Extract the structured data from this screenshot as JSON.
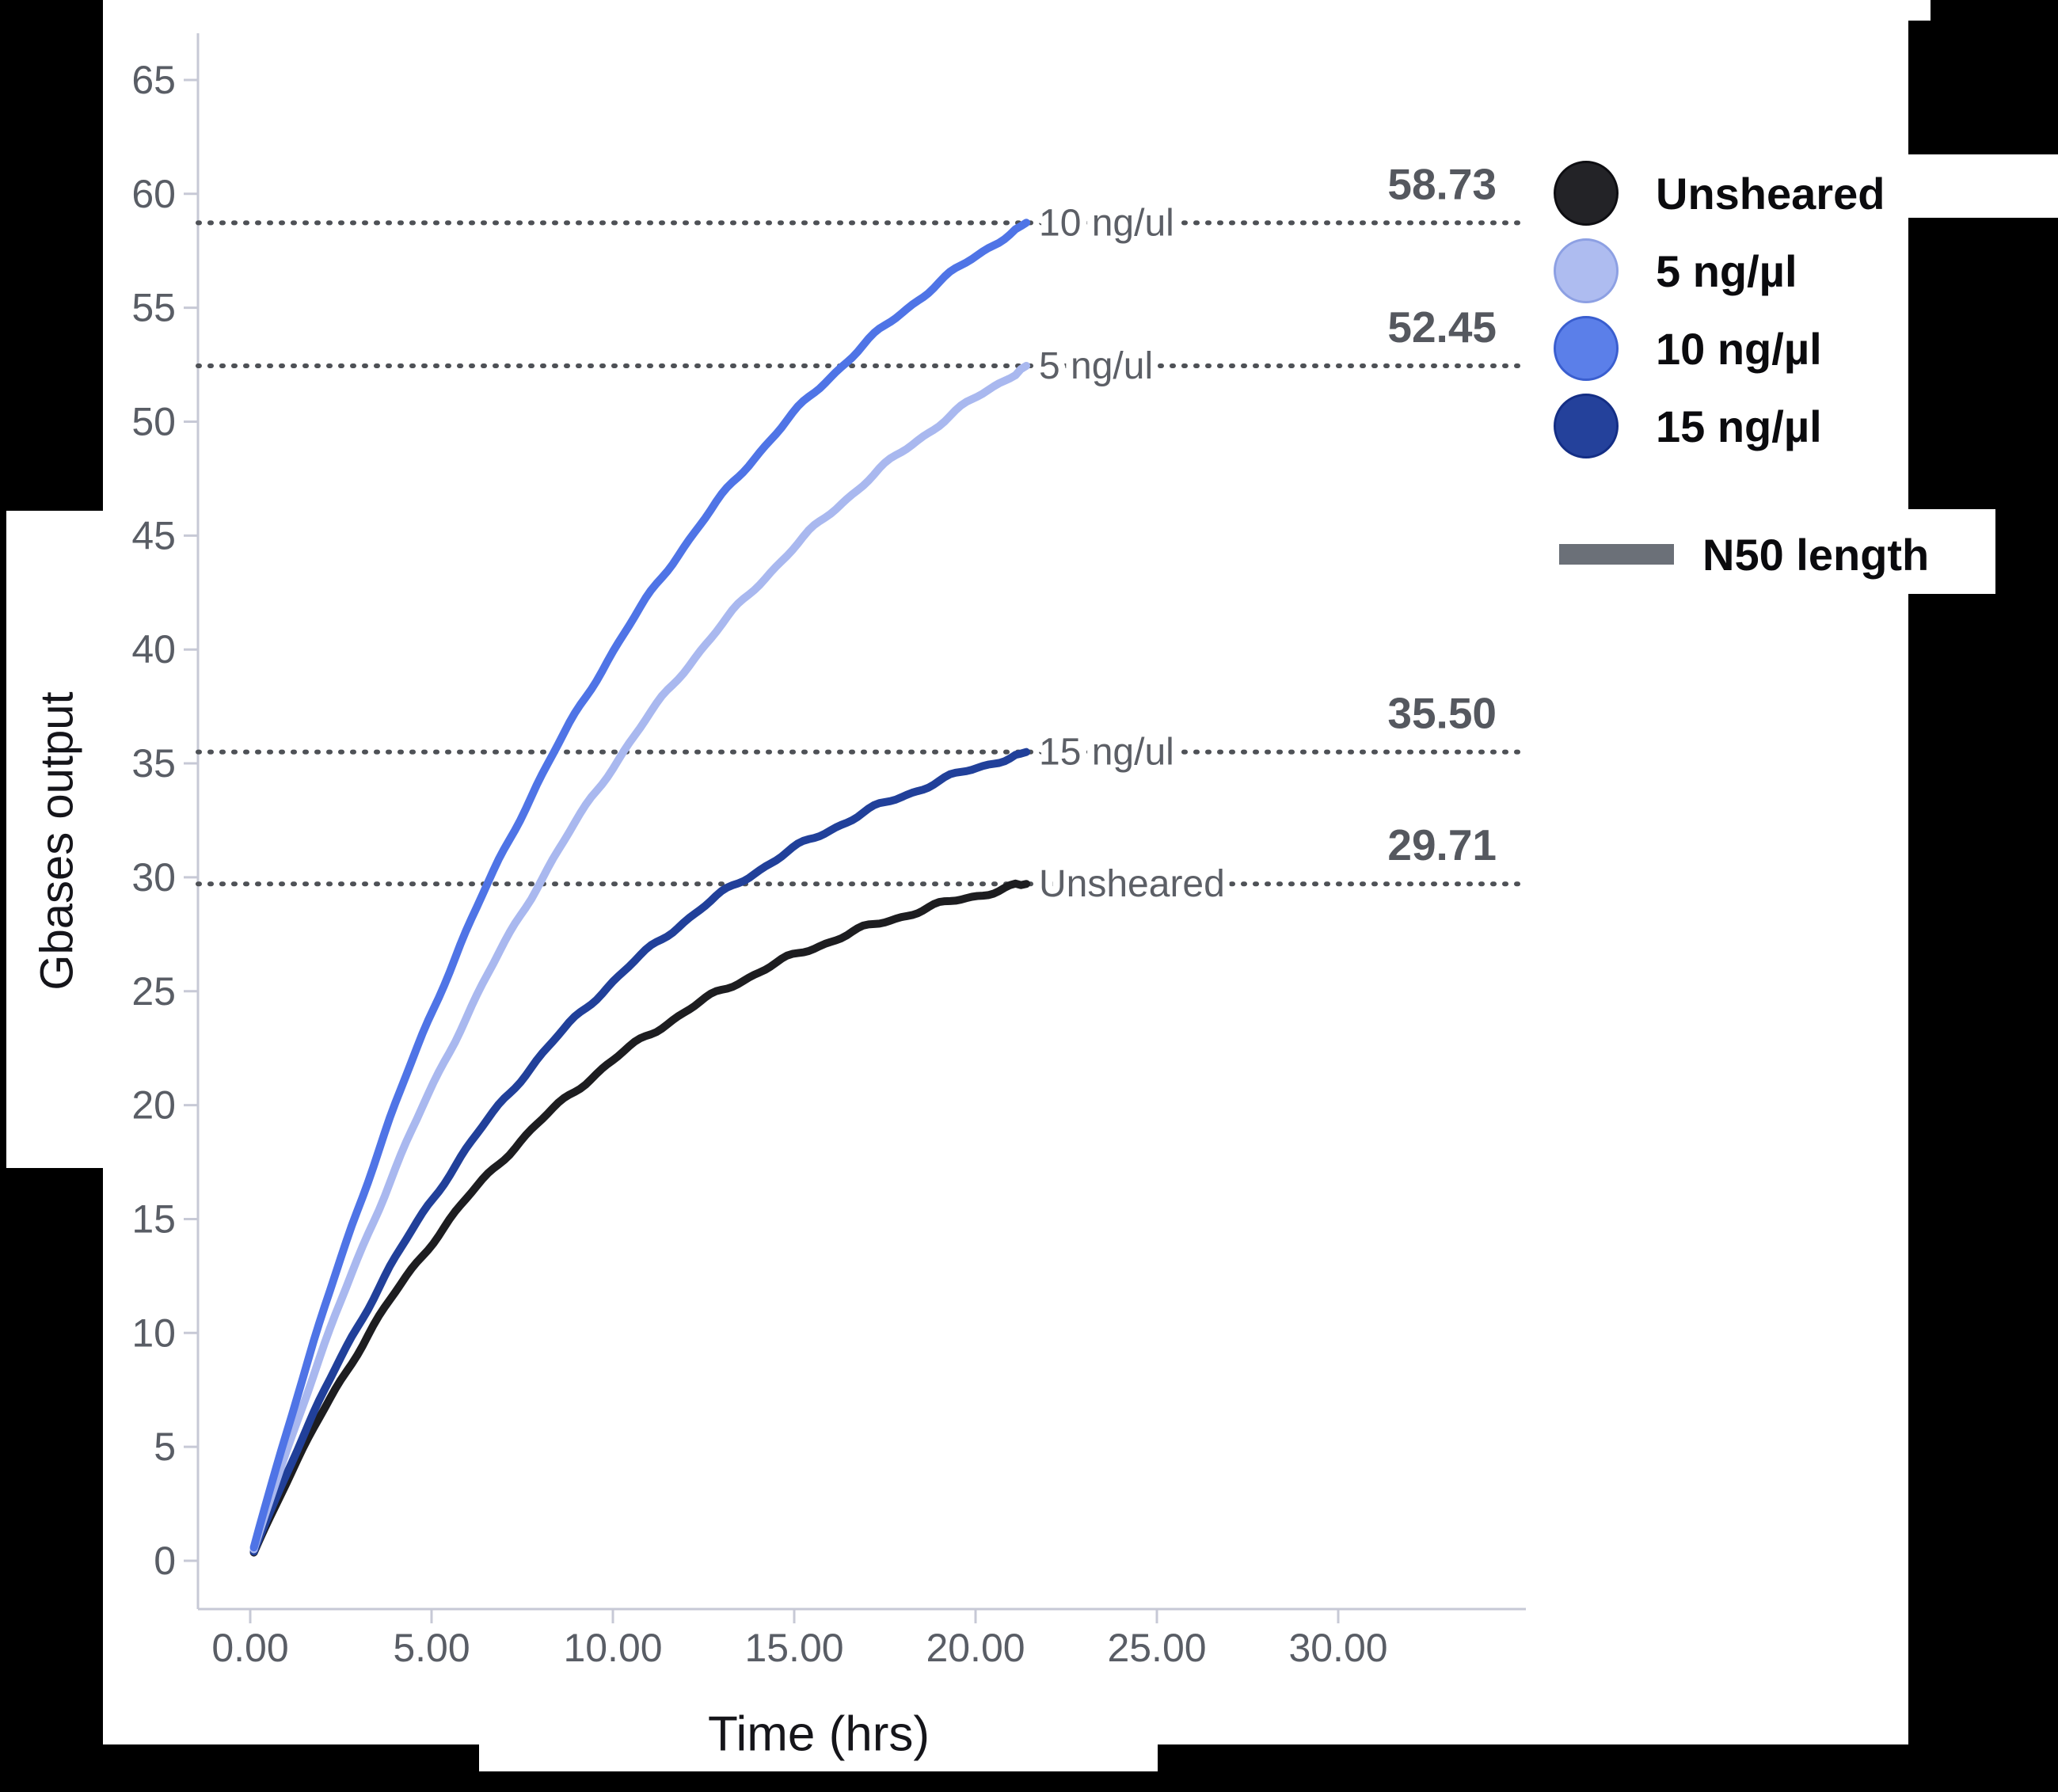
{
  "figure": {
    "background_color": "#000000",
    "plot_background_color": "#ffffff"
  },
  "chart_data": {
    "type": "line",
    "title": "",
    "xlabel": "Time (hrs)",
    "ylabel": "Gbases output",
    "xlim": [
      0,
      35
    ],
    "ylim": [
      0,
      67
    ],
    "grid": false,
    "legend_position": "right",
    "x_tick_labels": [
      "0.00",
      "5.00",
      "10.00",
      "15.00",
      "20.00",
      "25.00",
      "30.00"
    ],
    "x_tick_values": [
      0,
      5,
      10,
      15,
      20,
      25,
      30
    ],
    "y_tick_labels": [
      "0",
      "5",
      "10",
      "15",
      "20",
      "25",
      "30",
      "35",
      "40",
      "45",
      "50",
      "55",
      "60",
      "65"
    ],
    "y_tick_values": [
      0,
      5,
      10,
      15,
      20,
      25,
      30,
      35,
      40,
      45,
      50,
      55,
      60,
      65
    ],
    "x_sample_hrs": [
      0.1,
      2.5,
      5,
      7.5,
      10,
      12.5,
      15,
      17.5,
      20,
      21.4
    ],
    "series": [
      {
        "name": "Unsheared",
        "color": "#1d1d20",
        "final_value": 29.71,
        "end_label": "Unsheared",
        "tau_hrs": 9,
        "t_end_hrs": 21.4,
        "gb_values": [
          0.7,
          7.9,
          14.0,
          18.5,
          22.0,
          24.6,
          26.6,
          28.1,
          29.2,
          29.71
        ]
      },
      {
        "name": "15 ng/µl",
        "color": "#21409a",
        "final_value": 35.5,
        "end_label": "15 ng/ul",
        "tau_hrs": 10,
        "t_end_hrs": 21.4,
        "gb_values": [
          0.7,
          8.9,
          15.8,
          21.2,
          25.4,
          28.7,
          31.3,
          33.2,
          34.8,
          35.5
        ]
      },
      {
        "name": "5 ng/µl",
        "color": "#a9b8ef",
        "final_value": 52.45,
        "end_label": "5 ng/ul",
        "tau_hrs": 13,
        "t_end_hrs": 21.4,
        "gb_values": [
          0.7,
          11.4,
          20.7,
          28.5,
          34.9,
          40.1,
          44.5,
          48.1,
          51.0,
          52.45
        ]
      },
      {
        "name": "10 ng/µl",
        "color": "#4f74e6",
        "final_value": 58.73,
        "end_label": "10 ng/ul",
        "tau_hrs": 12,
        "t_end_hrs": 21.4,
        "gb_values": [
          0.7,
          13.3,
          24.1,
          32.8,
          39.9,
          45.7,
          50.4,
          54.2,
          57.3,
          58.73
        ]
      }
    ],
    "n50_dotted_lines": [
      {
        "series": "10 ng/µl",
        "value": 58.73,
        "annotation": "58.73",
        "inline_label": "10 ng/ul"
      },
      {
        "series": "5 ng/µl",
        "value": 52.45,
        "annotation": "52.45",
        "inline_label": "5 ng/ul"
      },
      {
        "series": "15 ng/µl",
        "value": 35.5,
        "annotation": "35.50",
        "inline_label": "15 ng/ul"
      },
      {
        "series": "Unsheared",
        "value": 29.71,
        "annotation": "29.71",
        "inline_label": "Unsheared"
      }
    ],
    "annotation_color": "#55585f",
    "dotted_line_color": "#4e5156",
    "axis_line_color": "#c7c9d6",
    "tick_text_color": "#595d65",
    "inline_label_color": "#5c5f66"
  },
  "legend": {
    "items": [
      {
        "label": "Unsheared",
        "fill": "#232327",
        "stroke": "#0e0e12"
      },
      {
        "label": "5 ng/µl",
        "fill": "#aebcf0",
        "stroke": "#8da0e3"
      },
      {
        "label": "10 ng/µl",
        "fill": "#5b7fe9",
        "stroke": "#3a5ecf"
      },
      {
        "label": "15 ng/µl",
        "fill": "#24419b",
        "stroke": "#142e85"
      }
    ],
    "line_item": {
      "label": "N50 length",
      "color": "#6b7078"
    }
  }
}
